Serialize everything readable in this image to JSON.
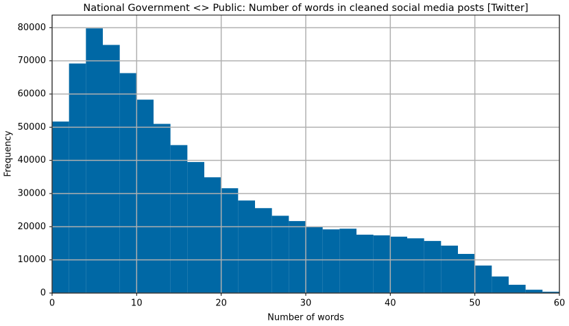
{
  "chart_data": {
    "type": "histogram",
    "title": "National Government <> Public: Number of words in cleaned social media posts [Twitter]",
    "x_label": "Number of words",
    "y_label": "Frequency",
    "bins": [
      0,
      2,
      4,
      6,
      8,
      10,
      12,
      14,
      16,
      18,
      20,
      22,
      24,
      26,
      28,
      30,
      32,
      34,
      36,
      38,
      40,
      42,
      44,
      46,
      48,
      50,
      52,
      54,
      56,
      58,
      60
    ],
    "values": [
      51700,
      69200,
      79800,
      74800,
      66300,
      58300,
      51000,
      44600,
      39500,
      34900,
      31600,
      27900,
      25600,
      23300,
      21700,
      20000,
      19200,
      19400,
      17600,
      17400,
      17000,
      16500,
      15700,
      14300,
      11800,
      8300,
      5000,
      2500,
      1000,
      400
    ],
    "color": "#0068a5",
    "xlim": [
      0,
      60
    ],
    "xticks": [
      0,
      10,
      20,
      30,
      40,
      50,
      60
    ],
    "ylim": [
      0,
      83790
    ],
    "yticks": [
      0,
      10000,
      20000,
      30000,
      40000,
      50000,
      60000,
      70000,
      80000
    ],
    "grid": true
  }
}
